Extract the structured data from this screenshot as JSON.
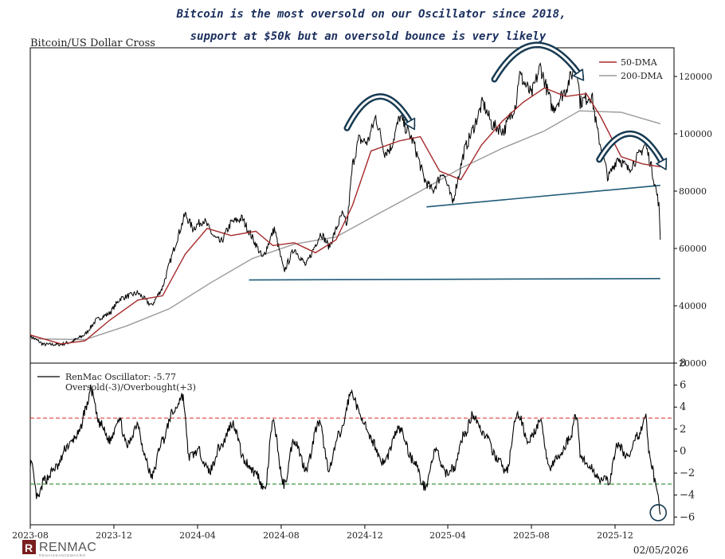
{
  "headline": {
    "line1": "Bitcoin is the most oversold on our Oscillator since 2018,",
    "line2": "support at $50k but an oversold bounce is very likely"
  },
  "footer": {
    "brand": "RENMAC",
    "tagline": "RENAISSANCEMACRO",
    "logo_letter": "R",
    "date": "02/05/2026"
  },
  "chart_data": [
    {
      "type": "line",
      "title": "Bitcoin/US Dollar Cross",
      "ylim": [
        20000,
        130000
      ],
      "yticks": [
        20000,
        40000,
        60000,
        80000,
        100000,
        120000
      ],
      "legend": {
        "placement": "top-right",
        "entries": [
          "50-DMA",
          "200-DMA"
        ]
      },
      "colors": {
        "price": "#000000",
        "dma50": "#a52a2a",
        "dma200": "#9a9a9a",
        "trendline": "#1f5b78",
        "annotation": "#173a52"
      },
      "xlim": [
        "2023-08-01",
        "2026-02-25"
      ],
      "price_points": [
        [
          "2023-08-01",
          29500
        ],
        [
          "2023-08-20",
          26500
        ],
        [
          "2023-09-15",
          26500
        ],
        [
          "2023-10-01",
          27500
        ],
        [
          "2023-10-20",
          30000
        ],
        [
          "2023-11-05",
          35000
        ],
        [
          "2023-11-25",
          37500
        ],
        [
          "2023-12-10",
          42500
        ],
        [
          "2024-01-05",
          44500
        ],
        [
          "2024-01-25",
          40000
        ],
        [
          "2024-02-10",
          46500
        ],
        [
          "2024-02-28",
          61000
        ],
        [
          "2024-03-14",
          72000
        ],
        [
          "2024-03-25",
          67000
        ],
        [
          "2024-04-10",
          70000
        ],
        [
          "2024-04-25",
          64000
        ],
        [
          "2024-05-05",
          62000
        ],
        [
          "2024-05-20",
          69000
        ],
        [
          "2024-06-05",
          70500
        ],
        [
          "2024-06-25",
          61500
        ],
        [
          "2024-07-05",
          56500
        ],
        [
          "2024-07-22",
          67000
        ],
        [
          "2024-08-05",
          52000
        ],
        [
          "2024-08-20",
          60000
        ],
        [
          "2024-09-06",
          54000
        ],
        [
          "2024-09-28",
          65500
        ],
        [
          "2024-10-10",
          60500
        ],
        [
          "2024-10-29",
          72000
        ],
        [
          "2024-11-05",
          68000
        ],
        [
          "2024-11-13",
          89000
        ],
        [
          "2024-11-22",
          98000
        ],
        [
          "2024-12-05",
          97000
        ],
        [
          "2024-12-17",
          106000
        ],
        [
          "2024-12-30",
          93500
        ],
        [
          "2025-01-08",
          95000
        ],
        [
          "2025-01-21",
          106000
        ],
        [
          "2025-02-10",
          97000
        ],
        [
          "2025-02-26",
          84000
        ],
        [
          "2025-03-10",
          80000
        ],
        [
          "2025-03-25",
          87000
        ],
        [
          "2025-04-08",
          76000
        ],
        [
          "2025-04-25",
          94000
        ],
        [
          "2025-05-10",
          103000
        ],
        [
          "2025-05-22",
          111000
        ],
        [
          "2025-06-05",
          103000
        ],
        [
          "2025-06-22",
          101000
        ],
        [
          "2025-07-10",
          111000
        ],
        [
          "2025-07-14",
          121000
        ],
        [
          "2025-08-01",
          113500
        ],
        [
          "2025-08-14",
          123500
        ],
        [
          "2025-09-01",
          108500
        ],
        [
          "2025-09-20",
          115500
        ],
        [
          "2025-10-06",
          125000
        ],
        [
          "2025-10-11",
          111000
        ],
        [
          "2025-10-28",
          113500
        ],
        [
          "2025-11-05",
          101000
        ],
        [
          "2025-11-21",
          84500
        ],
        [
          "2025-12-05",
          92000
        ],
        [
          "2025-12-20",
          87500
        ],
        [
          "2026-01-05",
          92500
        ],
        [
          "2026-01-14",
          96500
        ],
        [
          "2026-01-22",
          89500
        ],
        [
          "2026-01-31",
          79000
        ],
        [
          "2026-02-03",
          75000
        ],
        [
          "2026-02-05",
          63000
        ]
      ],
      "dma50_points": [
        [
          "2023-08-01",
          29800
        ],
        [
          "2023-09-15",
          26700
        ],
        [
          "2023-10-20",
          27800
        ],
        [
          "2023-11-25",
          35000
        ],
        [
          "2024-01-05",
          42000
        ],
        [
          "2024-02-10",
          43500
        ],
        [
          "2024-03-14",
          58000
        ],
        [
          "2024-04-15",
          67000
        ],
        [
          "2024-05-20",
          64500
        ],
        [
          "2024-06-25",
          66000
        ],
        [
          "2024-07-20",
          61000
        ],
        [
          "2024-08-20",
          62000
        ],
        [
          "2024-09-20",
          58500
        ],
        [
          "2024-10-20",
          63000
        ],
        [
          "2024-11-13",
          75000
        ],
        [
          "2024-12-10",
          94000
        ],
        [
          "2025-01-20",
          97500
        ],
        [
          "2025-02-20",
          99000
        ],
        [
          "2025-03-20",
          87000
        ],
        [
          "2025-04-20",
          84000
        ],
        [
          "2025-05-20",
          96000
        ],
        [
          "2025-06-20",
          104500
        ],
        [
          "2025-07-20",
          111000
        ],
        [
          "2025-08-20",
          116000
        ],
        [
          "2025-09-20",
          113000
        ],
        [
          "2025-10-20",
          114000
        ],
        [
          "2025-11-10",
          106000
        ],
        [
          "2025-12-10",
          92000
        ],
        [
          "2026-01-10",
          89500
        ],
        [
          "2026-02-05",
          88500
        ]
      ],
      "dma200_points": [
        [
          "2023-08-01",
          28500
        ],
        [
          "2023-10-20",
          28200
        ],
        [
          "2023-12-20",
          33000
        ],
        [
          "2024-02-20",
          39000
        ],
        [
          "2024-04-20",
          48000
        ],
        [
          "2024-06-20",
          56500
        ],
        [
          "2024-08-20",
          61500
        ],
        [
          "2024-10-20",
          64000
        ],
        [
          "2024-12-20",
          72000
        ],
        [
          "2025-02-20",
          80000
        ],
        [
          "2025-04-20",
          88000
        ],
        [
          "2025-06-20",
          95000
        ],
        [
          "2025-08-20",
          101000
        ],
        [
          "2025-10-10",
          108000
        ],
        [
          "2025-12-10",
          107500
        ],
        [
          "2026-02-05",
          103500
        ]
      ],
      "trendlines": [
        {
          "from": [
            "2024-06-15",
            49000
          ],
          "to": [
            "2026-02-05",
            49500
          ]
        },
        {
          "from": [
            "2025-03-01",
            74500
          ],
          "to": [
            "2026-02-05",
            82000
          ]
        }
      ],
      "arcs": [
        {
          "start": [
            "2024-11-05",
            102000
          ],
          "peak": [
            "2024-12-22",
            113000
          ],
          "end": [
            "2025-02-08",
            103000
          ]
        },
        {
          "start": [
            "2025-06-08",
            119000
          ],
          "peak": [
            "2025-08-08",
            131000
          ],
          "end": [
            "2025-10-12",
            120000
          ]
        },
        {
          "start": [
            "2025-11-08",
            91000
          ],
          "peak": [
            "2025-12-25",
            100000
          ],
          "end": [
            "2026-02-10",
            89000
          ]
        }
      ]
    },
    {
      "type": "line",
      "ylim": [
        -6.7,
        8
      ],
      "yticks": [
        -6,
        -4,
        -2,
        0,
        2,
        4,
        6,
        8
      ],
      "xticks": [
        "2023-08",
        "2023-12",
        "2024-04",
        "2024-08",
        "2024-12",
        "2025-04",
        "2025-08",
        "2025-12"
      ],
      "legend": {
        "placement": "top-left",
        "entries": [
          "RenMac Oscillator: -5.77",
          "Oversold(-3)/Overbought(+3)"
        ]
      },
      "colors": {
        "line": "#000000",
        "overbought": "#e04040",
        "oversold": "#2e8b2e",
        "annotation": "#173a52"
      },
      "thresholds": {
        "overbought": 3,
        "oversold": -3
      },
      "last_value": -5.77,
      "oscillator_points": [
        [
          "2023-08-01",
          -1.0
        ],
        [
          "2023-08-12",
          -4.3
        ],
        [
          "2023-08-22",
          -2.6
        ],
        [
          "2023-09-08",
          -1.5
        ],
        [
          "2023-09-25",
          0.5
        ],
        [
          "2023-10-10",
          1.5
        ],
        [
          "2023-10-22",
          4.0
        ],
        [
          "2023-10-28",
          5.6
        ],
        [
          "2023-11-10",
          2.5
        ],
        [
          "2023-11-25",
          1.0
        ],
        [
          "2023-12-08",
          3.0
        ],
        [
          "2023-12-20",
          0.5
        ],
        [
          "2024-01-05",
          2.5
        ],
        [
          "2024-01-15",
          -0.5
        ],
        [
          "2024-01-25",
          -2.3
        ],
        [
          "2024-02-10",
          1.0
        ],
        [
          "2024-02-25",
          3.5
        ],
        [
          "2024-03-10",
          5.0
        ],
        [
          "2024-03-20",
          -0.5
        ],
        [
          "2024-04-02",
          0.0
        ],
        [
          "2024-04-18",
          -1.8
        ],
        [
          "2024-05-05",
          0.5
        ],
        [
          "2024-05-22",
          2.5
        ],
        [
          "2024-06-10",
          -1.0
        ],
        [
          "2024-06-25",
          -2.0
        ],
        [
          "2024-07-08",
          -3.5
        ],
        [
          "2024-07-20",
          2.5
        ],
        [
          "2024-08-05",
          -3.0
        ],
        [
          "2024-08-20",
          1.0
        ],
        [
          "2024-09-06",
          -1.5
        ],
        [
          "2024-09-25",
          2.5
        ],
        [
          "2024-10-10",
          -1.5
        ],
        [
          "2024-10-25",
          1.5
        ],
        [
          "2024-11-12",
          5.3
        ],
        [
          "2024-11-25",
          3.2
        ],
        [
          "2024-12-10",
          1.0
        ],
        [
          "2024-12-28",
          -1.0
        ],
        [
          "2025-01-20",
          2.0
        ],
        [
          "2025-02-10",
          -0.8
        ],
        [
          "2025-02-26",
          -3.2
        ],
        [
          "2025-03-15",
          0.0
        ],
        [
          "2025-03-28",
          -2.0
        ],
        [
          "2025-04-10",
          -1.5
        ],
        [
          "2025-04-25",
          1.5
        ],
        [
          "2025-05-08",
          3.3
        ],
        [
          "2025-05-25",
          1.5
        ],
        [
          "2025-06-10",
          -0.5
        ],
        [
          "2025-06-25",
          -1.8
        ],
        [
          "2025-07-12",
          3.3
        ],
        [
          "2025-07-28",
          1.0
        ],
        [
          "2025-08-14",
          2.5
        ],
        [
          "2025-08-28",
          -1.5
        ],
        [
          "2025-09-10",
          -0.5
        ],
        [
          "2025-09-25",
          1.0
        ],
        [
          "2025-10-06",
          3.3
        ],
        [
          "2025-10-12",
          -0.5
        ],
        [
          "2025-10-25",
          -1.5
        ],
        [
          "2025-11-10",
          -2.5
        ],
        [
          "2025-11-21",
          -2.8
        ],
        [
          "2025-12-05",
          0.5
        ],
        [
          "2025-12-20",
          -0.5
        ],
        [
          "2026-01-05",
          1.5
        ],
        [
          "2026-01-14",
          3.2
        ],
        [
          "2026-01-22",
          -1.0
        ],
        [
          "2026-01-31",
          -3.5
        ],
        [
          "2026-02-05",
          -5.77
        ]
      ],
      "circle": [
        "2026-02-02",
        -5.6
      ]
    }
  ]
}
